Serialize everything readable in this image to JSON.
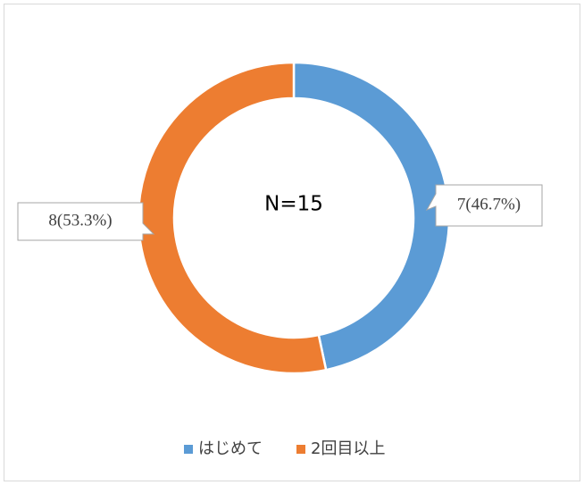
{
  "chart_data": {
    "type": "donut",
    "categories": [
      "はじめて",
      "2回目以上"
    ],
    "values": [
      7,
      8
    ],
    "value_labels": [
      "7(46.7%)",
      "8(53.3%)"
    ],
    "colors": [
      "#5b9bd5",
      "#ed7d31"
    ],
    "center_label": "N=15",
    "legend": "bottom"
  }
}
